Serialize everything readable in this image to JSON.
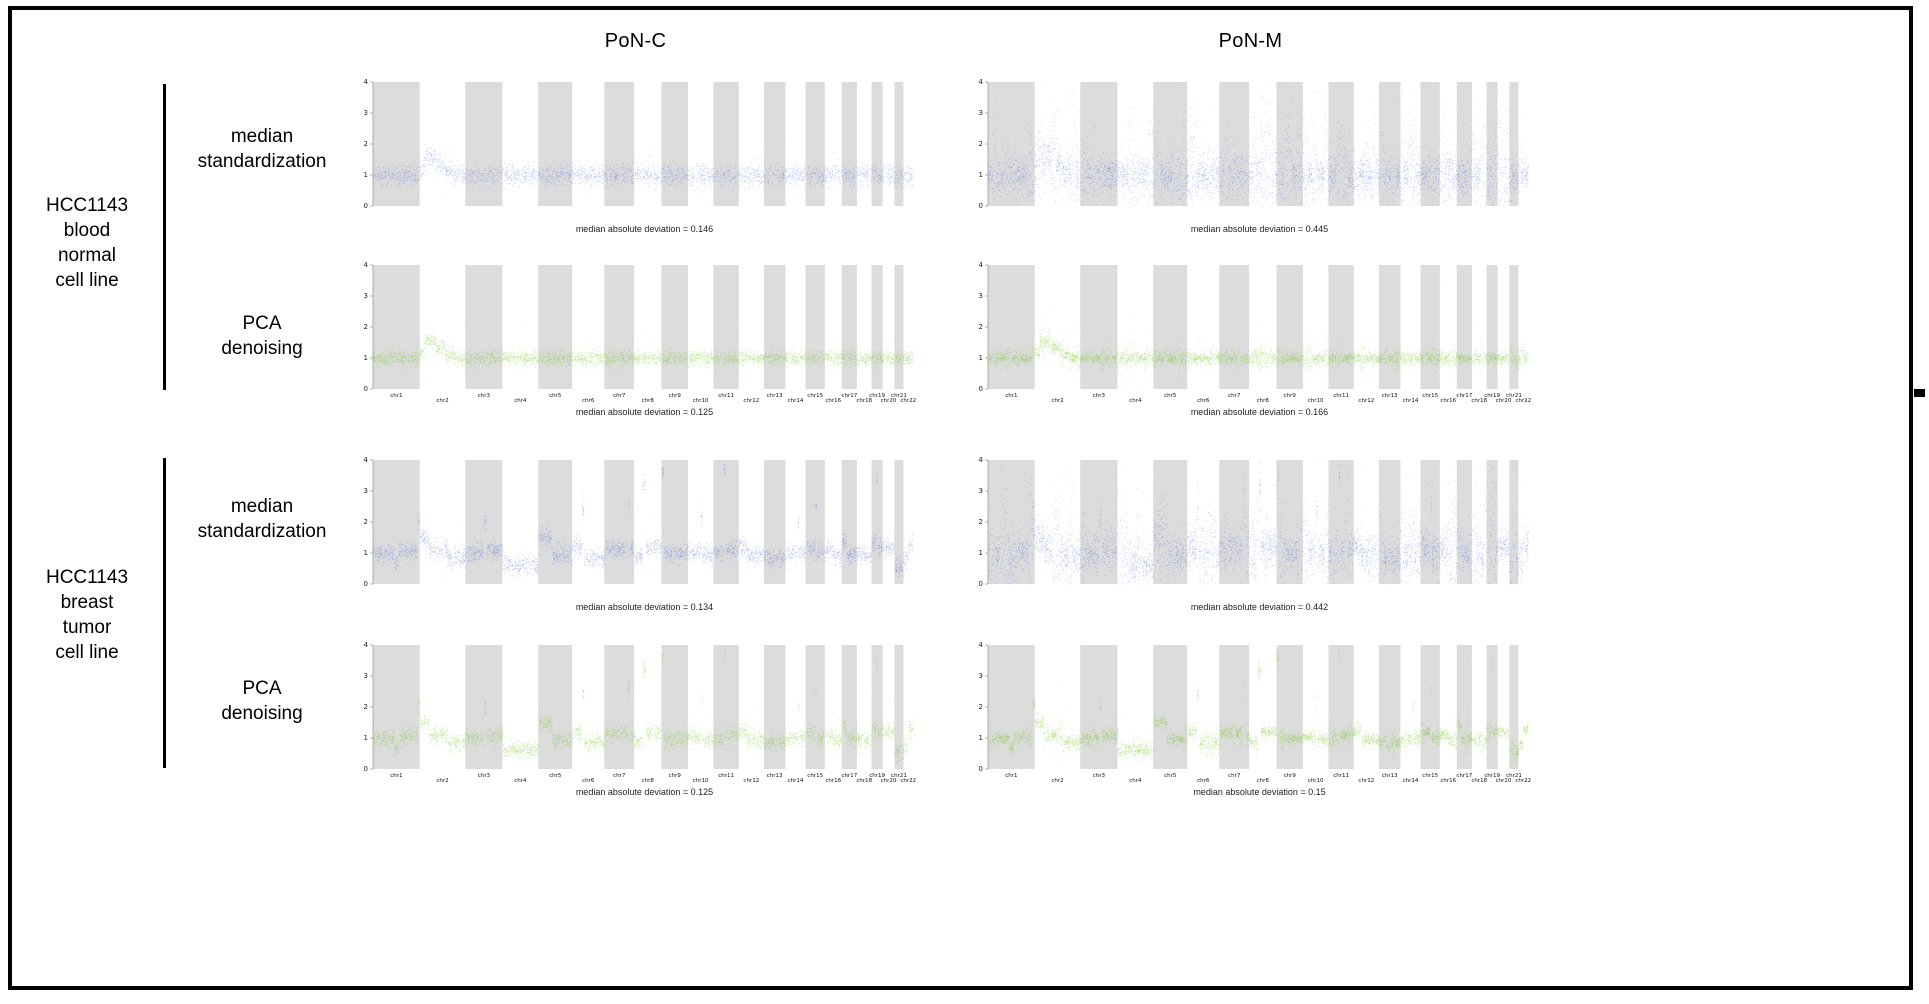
{
  "figure": {
    "columns": [
      "PoN-C",
      "PoN-M"
    ],
    "row_groups": [
      {
        "label": "HCC1143\nblood\nnormal\ncell line"
      },
      {
        "label": "HCC1143\nbreast\ntumor\ncell line"
      }
    ],
    "row_labels": [
      "median\nstandardization",
      "PCA\ndenoising"
    ]
  },
  "chart_data": {
    "type": "scatter",
    "ylabel": "",
    "xlabel": "",
    "ylim": [
      0,
      4
    ],
    "yticks": [
      0,
      1,
      2,
      3,
      4
    ],
    "grid": false,
    "legend": "none",
    "band_color": "#dcdcdc",
    "chromosomes": [
      "chr1",
      "chr2",
      "chr3",
      "chr4",
      "chr5",
      "chr6",
      "chr7",
      "chr8",
      "chr9",
      "chr10",
      "chr11",
      "chr12",
      "chr13",
      "chr14",
      "chr15",
      "chr16",
      "chr17",
      "chr18",
      "chr19",
      "chr20",
      "chr21",
      "chr22"
    ],
    "chrom_sizes": [
      249,
      243,
      198,
      191,
      181,
      171,
      159,
      146,
      141,
      136,
      135,
      134,
      115,
      107,
      103,
      90,
      81,
      78,
      59,
      63,
      48,
      51
    ],
    "patterns": {
      "normal": {
        "default": [
          [
            0,
            1,
            1.0
          ]
        ],
        "2": [
          [
            0,
            0.1,
            1.2
          ],
          [
            0.1,
            0.35,
            1.55
          ],
          [
            0.35,
            0.55,
            1.35
          ],
          [
            0.55,
            0.75,
            1.12
          ],
          [
            0.75,
            1,
            1.0
          ]
        ]
      },
      "tumor": {
        "default": [
          [
            0,
            1,
            1.0
          ]
        ],
        "1": [
          [
            0,
            0.45,
            1.0
          ],
          [
            0.45,
            0.55,
            0.7
          ],
          [
            0.55,
            0.95,
            1.05
          ],
          [
            0.95,
            1,
            2.1
          ]
        ],
        "2": [
          [
            0,
            0.2,
            1.5
          ],
          [
            0.2,
            0.6,
            1.1
          ],
          [
            0.6,
            1,
            0.85
          ]
        ],
        "3": [
          [
            0,
            0.5,
            1.0
          ],
          [
            0.5,
            0.56,
            2.0
          ],
          [
            0.56,
            1,
            1.1
          ]
        ],
        "4": [
          [
            0,
            1,
            0.62
          ]
        ],
        "5": [
          [
            0,
            0.4,
            1.5
          ],
          [
            0.4,
            1,
            0.95
          ]
        ],
        "6": [
          [
            0,
            0.3,
            1.2
          ],
          [
            0.3,
            0.36,
            2.4
          ],
          [
            0.36,
            1,
            0.85
          ]
        ],
        "7": [
          [
            0,
            0.78,
            1.15
          ],
          [
            0.78,
            0.84,
            2.6
          ],
          [
            0.84,
            1,
            1.1
          ]
        ],
        "8": [
          [
            0,
            0.3,
            0.9
          ],
          [
            0.3,
            0.42,
            3.2
          ],
          [
            0.42,
            1,
            1.2
          ]
        ],
        "9": [
          [
            0,
            0.08,
            3.6
          ],
          [
            0.08,
            1,
            1.0
          ]
        ],
        "10": [
          [
            0,
            0.5,
            1.05
          ],
          [
            0.5,
            0.56,
            2.2
          ],
          [
            0.56,
            1,
            0.95
          ]
        ],
        "11": [
          [
            0,
            0.4,
            1.0
          ],
          [
            0.4,
            0.46,
            3.7
          ],
          [
            0.46,
            1,
            1.1
          ]
        ],
        "12": [
          [
            0,
            0.3,
            1.25
          ],
          [
            0.3,
            1,
            0.95
          ]
        ],
        "13": [
          [
            0,
            1,
            0.85
          ]
        ],
        "14": [
          [
            0,
            0.6,
            1.0
          ],
          [
            0.6,
            0.66,
            2.0
          ],
          [
            0.66,
            1,
            1.0
          ]
        ],
        "15": [
          [
            0,
            0.5,
            1.2
          ],
          [
            0.5,
            0.56,
            2.5
          ],
          [
            0.56,
            1,
            1.0
          ]
        ],
        "16": [
          [
            0,
            0.5,
            1.1
          ],
          [
            0.5,
            1,
            0.9
          ]
        ],
        "17": [
          [
            0,
            0.3,
            1.4
          ],
          [
            0.3,
            1,
            1.0
          ]
        ],
        "18": [
          [
            0,
            1,
            0.95
          ]
        ],
        "19": [
          [
            0,
            0.4,
            1.3
          ],
          [
            0.4,
            0.52,
            3.4
          ],
          [
            0.52,
            1,
            1.2
          ]
        ],
        "20": [
          [
            0,
            1,
            1.2
          ]
        ],
        "21": [
          [
            0,
            1,
            0.55
          ]
        ],
        "22": [
          [
            0,
            0.5,
            0.8
          ],
          [
            0.5,
            1,
            1.3
          ]
        ]
      }
    },
    "charts": [
      {
        "id": "blood-ponc-median",
        "sample": "HCC1143 blood normal cell line",
        "column": "PoN-C",
        "transform": "median standardization",
        "color": "#4f66d6",
        "mad": 0.146,
        "mad_label": "median absolute deviation = 0.146",
        "pattern": "normal",
        "sigma": 0.18,
        "tail": 0.01,
        "streaks": 0,
        "points": 4200,
        "show_chrom_labels": false
      },
      {
        "id": "blood-ponm-median",
        "sample": "HCC1143 blood normal cell line",
        "column": "PoN-M",
        "transform": "median standardization",
        "color": "#4f66d6",
        "mad": 0.445,
        "mad_label": "median absolute deviation = 0.445",
        "pattern": "normal",
        "sigma": 0.55,
        "tail": 0.05,
        "streaks": 1,
        "points": 8000,
        "show_chrom_labels": false
      },
      {
        "id": "blood-ponc-pca",
        "sample": "HCC1143 blood normal cell line",
        "column": "PoN-C",
        "transform": "PCA denoising",
        "color": "#7cc52f",
        "mad": 0.125,
        "mad_label": "median absolute deviation = 0.125",
        "pattern": "normal",
        "sigma": 0.13,
        "tail": 0.012,
        "streaks": 0,
        "points": 6000,
        "show_chrom_labels": true
      },
      {
        "id": "blood-ponm-pca",
        "sample": "HCC1143 blood normal cell line",
        "column": "PoN-M",
        "transform": "PCA denoising",
        "color": "#7cc52f",
        "mad": 0.166,
        "mad_label": "median absolute deviation = 0.166",
        "pattern": "normal",
        "sigma": 0.18,
        "tail": 0.02,
        "streaks": 0.5,
        "points": 7000,
        "show_chrom_labels": true
      },
      {
        "id": "tumor-ponc-median",
        "sample": "HCC1143 breast tumor cell line",
        "column": "PoN-C",
        "transform": "median standardization",
        "color": "#4f66d6",
        "mad": 0.134,
        "mad_label": "median absolute deviation = 0.134",
        "pattern": "tumor",
        "sigma": 0.16,
        "tail": 0.012,
        "streaks": 0,
        "points": 5000,
        "show_chrom_labels": false
      },
      {
        "id": "tumor-ponm-median",
        "sample": "HCC1143 breast tumor cell line",
        "column": "PoN-M",
        "transform": "median standardization",
        "color": "#4f66d6",
        "mad": 0.442,
        "mad_label": "median absolute deviation = 0.442",
        "pattern": "tumor",
        "sigma": 0.55,
        "tail": 0.05,
        "streaks": 1,
        "points": 8000,
        "show_chrom_labels": false
      },
      {
        "id": "tumor-ponc-pca",
        "sample": "HCC1143 breast tumor cell line",
        "column": "PoN-C",
        "transform": "PCA denoising",
        "color": "#7cc52f",
        "mad": 0.125,
        "mad_label": "median absolute deviation = 0.125",
        "pattern": "tumor",
        "sigma": 0.15,
        "tail": 0.012,
        "streaks": 0,
        "points": 6000,
        "show_chrom_labels": true
      },
      {
        "id": "tumor-ponm-pca",
        "sample": "HCC1143 breast tumor cell line",
        "column": "PoN-M",
        "transform": "PCA denoising",
        "color": "#7cc52f",
        "mad": 0.15,
        "mad_label": "median absolute deviation = 0.15",
        "pattern": "tumor",
        "sigma": 0.18,
        "tail": 0.02,
        "streaks": 0.5,
        "points": 7000,
        "show_chrom_labels": true
      }
    ]
  }
}
